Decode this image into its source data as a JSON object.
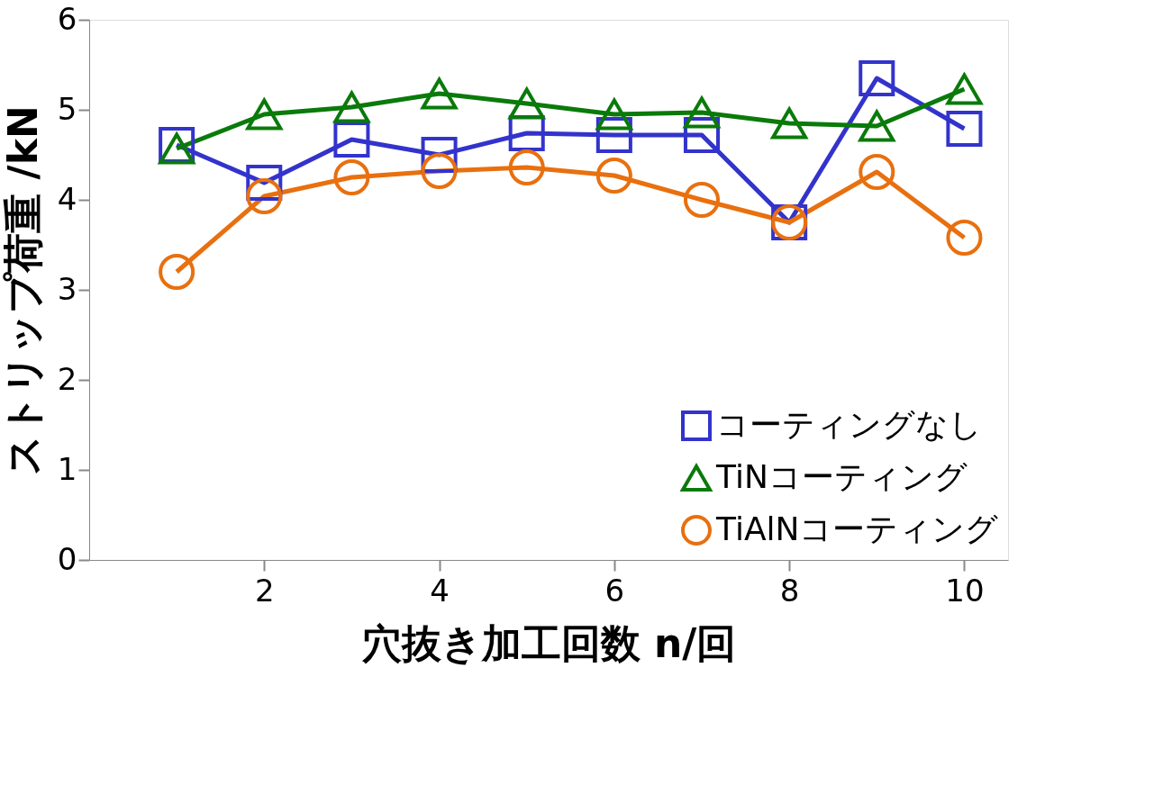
{
  "chart_data": {
    "type": "line",
    "xlabel": "穴抜き加工回数 n/回",
    "ylabel": "ストリップ荷重 /kN",
    "x": [
      1,
      2,
      3,
      4,
      5,
      6,
      7,
      8,
      9,
      10
    ],
    "xlim": [
      0,
      10.5
    ],
    "xticks": [
      2,
      4,
      6,
      8,
      10
    ],
    "ylim": [
      0,
      6
    ],
    "yticks": [
      0,
      1,
      2,
      3,
      4,
      5,
      6
    ],
    "grid": false,
    "legend": "bottom right",
    "line_style": "solid",
    "series": [
      {
        "name": "コーティングなし",
        "color": "#3333cc",
        "marker": "square",
        "values": [
          4.61,
          4.19,
          4.67,
          4.5,
          4.74,
          4.72,
          4.72,
          3.75,
          5.35,
          4.79
        ]
      },
      {
        "name": "TiNコーティング",
        "color": "#0a7a0a",
        "marker": "triangle",
        "values": [
          4.57,
          4.95,
          5.03,
          5.18,
          5.07,
          4.95,
          4.97,
          4.85,
          4.82,
          5.23
        ]
      },
      {
        "name": "TiAlNコーティング",
        "color": "#e8700f",
        "marker": "circle",
        "values": [
          3.2,
          4.04,
          4.25,
          4.32,
          4.36,
          4.27,
          4.0,
          3.75,
          4.31,
          3.58
        ]
      }
    ]
  }
}
